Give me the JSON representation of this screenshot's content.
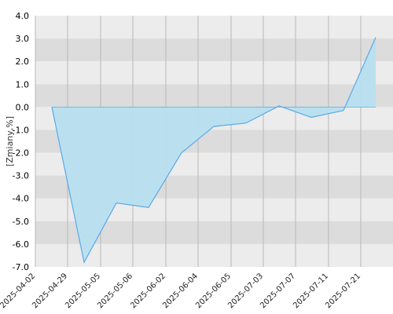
{
  "chart_data": {
    "type": "area",
    "ylabel": "[Zmiany,%]",
    "xlabel": "",
    "title": "",
    "ylim": [
      -7.0,
      4.0
    ],
    "y_ticks": [
      "4.0",
      "3.0",
      "2.0",
      "1.0",
      "0.0",
      "-1.0",
      "-2.0",
      "-3.0",
      "-4.0",
      "-5.0",
      "-6.0",
      "-7.0"
    ],
    "x_tick_labels": [
      "2025-04-02",
      "2025-04-29",
      "2025-05-05",
      "2025-05-06",
      "2025-06-02",
      "2025-06-04",
      "2025-06-05",
      "2025-07-03",
      "2025-07-07",
      "2025-07-11",
      "2025-07-21"
    ],
    "grid": true,
    "series": [
      {
        "values": [
          0.0,
          -6.8,
          -4.2,
          -4.4,
          -2.0,
          -0.85,
          -0.7,
          0.05,
          -0.45,
          -0.15,
          3.05
        ]
      }
    ],
    "colors": {
      "fill": "#b7dff0",
      "line": "#5aa9e6",
      "band_light": "#ececec",
      "band_dark": "#dcdcdc",
      "grid": "#b8b8b8"
    }
  }
}
